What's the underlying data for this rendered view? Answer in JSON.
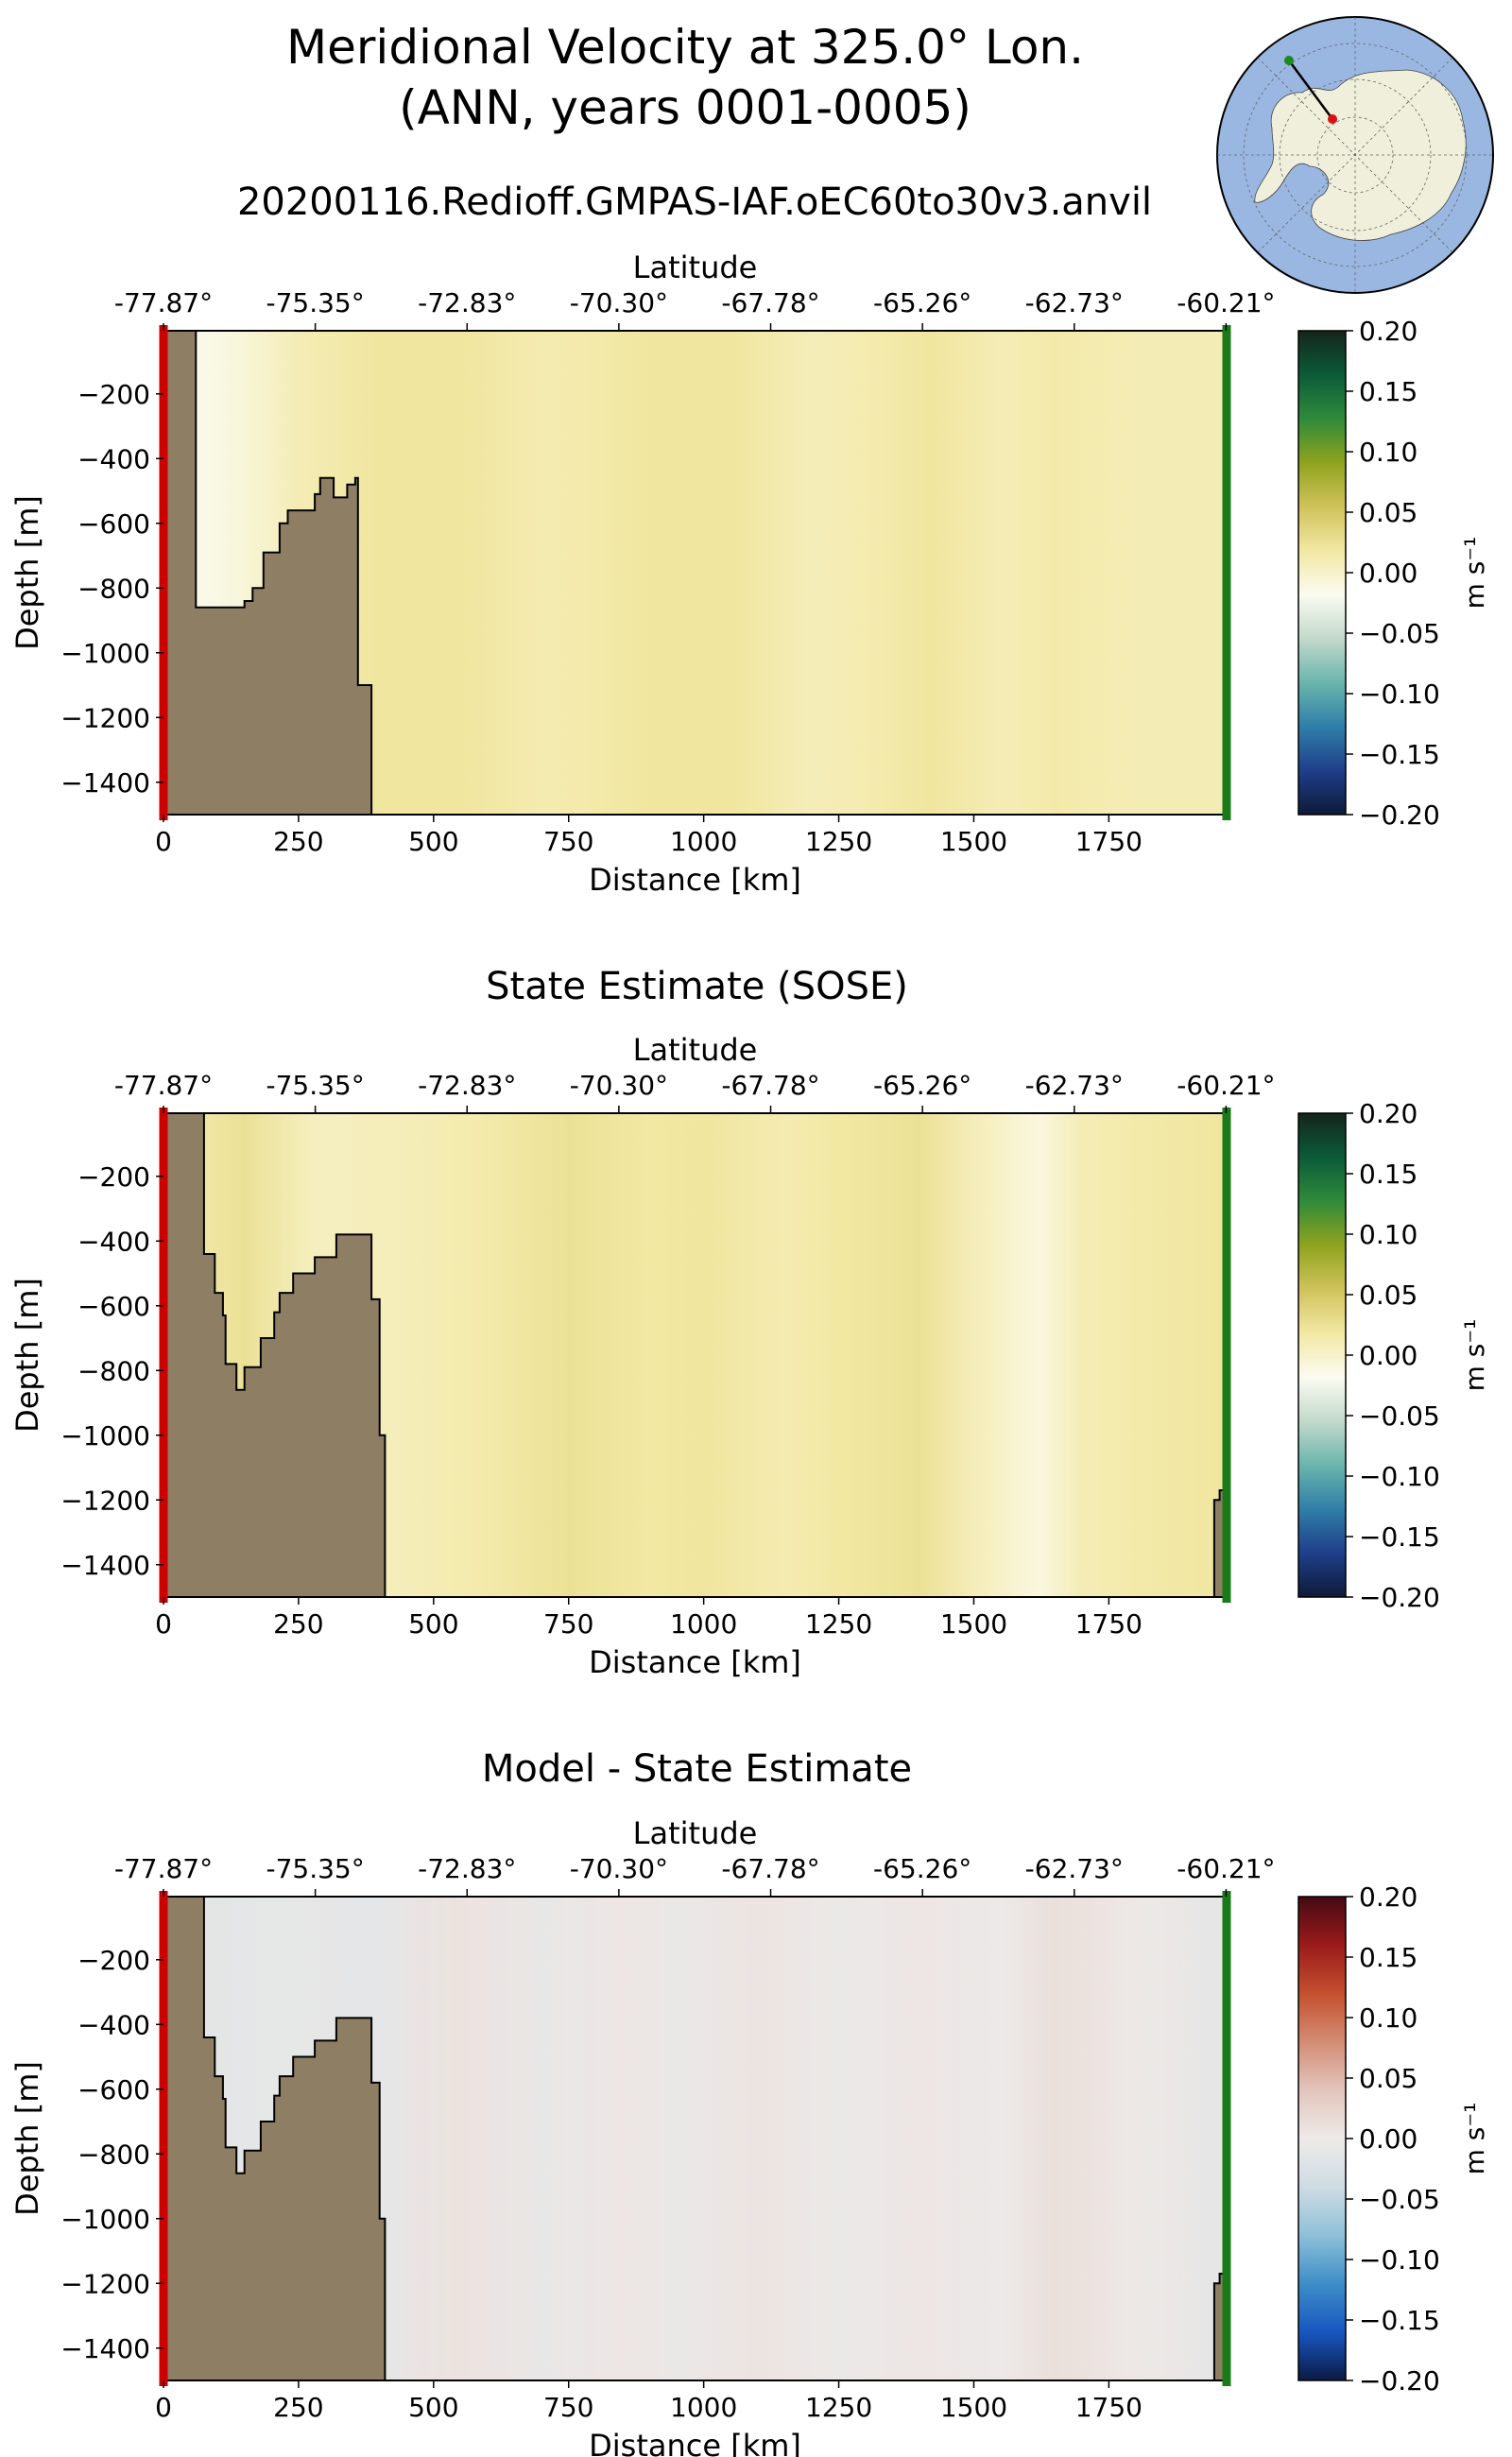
{
  "title": {
    "line1": "Meridional Velocity at 325.0° Lon.",
    "line2": "(ANN, years 0001-0005)",
    "run_name": "20200116.Redioff.GMPAS-IAF.oEC60to30v3.anvil"
  },
  "colors": {
    "bathymetry_fill": "#8e7e64",
    "start_marker": "#cc0000",
    "end_marker": "#1a7a1a",
    "velocity_cmap": [
      "#0e1a38",
      "#1f3f8a",
      "#2f7fa8",
      "#6ab5ad",
      "#c3d9cc",
      "#fbfbf1",
      "#f2e8a3",
      "#cfc25b",
      "#8fa31e",
      "#2f8b3a",
      "#0b5b39",
      "#14251c"
    ],
    "diff_cmap": [
      "#0b1a44",
      "#1857c0",
      "#3e8ec8",
      "#8ec0d8",
      "#cfdce3",
      "#eeeae8",
      "#e2c5bc",
      "#d38c74",
      "#c4502e",
      "#9b1b1b",
      "#450a14"
    ]
  },
  "chart_data": [
    {
      "type": "heatmap",
      "title": "",
      "xlabel": "Distance [km]",
      "ylabel": "Depth [m]",
      "top_xlabel": "Latitude",
      "xlim": [
        0,
        1968
      ],
      "ylim": [
        -1500,
        -5
      ],
      "x_ticks": [
        "0",
        "250",
        "500",
        "750",
        "1000",
        "1250",
        "1500",
        "1750"
      ],
      "x_tick_values": [
        0,
        250,
        500,
        750,
        1000,
        1250,
        1500,
        1750
      ],
      "y_ticks": [
        "−200",
        "−400",
        "−600",
        "−800",
        "−1000",
        "−1200",
        "−1400"
      ],
      "y_tick_values": [
        -200,
        -400,
        -600,
        -800,
        -1000,
        -1200,
        -1400
      ],
      "top_ticks": [
        "-77.87°",
        "-75.35°",
        "-72.83°",
        "-70.30°",
        "-67.78°",
        "-65.26°",
        "-62.73°",
        "-60.21°"
      ],
      "top_tick_km": [
        0,
        281,
        562,
        843,
        1124,
        1405,
        1686,
        1967
      ],
      "colorbar": {
        "label": "m s⁻¹",
        "min": -0.2,
        "max": 0.2,
        "ticks": [
          "0.20",
          "0.15",
          "0.10",
          "0.05",
          "0.00",
          "−0.05",
          "−0.10",
          "−0.15",
          "−0.20"
        ],
        "cmap": "velocity"
      },
      "velocity_columns": [
        {
          "x_km": 0,
          "v": -0.01
        },
        {
          "x_km": 60,
          "v": -0.015
        },
        {
          "x_km": 140,
          "v": -0.008
        },
        {
          "x_km": 250,
          "v": 0.01
        },
        {
          "x_km": 400,
          "v": 0.02
        },
        {
          "x_km": 550,
          "v": 0.02
        },
        {
          "x_km": 700,
          "v": 0.012
        },
        {
          "x_km": 800,
          "v": 0.015
        },
        {
          "x_km": 900,
          "v": 0.02
        },
        {
          "x_km": 1050,
          "v": 0.02
        },
        {
          "x_km": 1200,
          "v": 0.008
        },
        {
          "x_km": 1300,
          "v": 0.012
        },
        {
          "x_km": 1420,
          "v": 0.02
        },
        {
          "x_km": 1550,
          "v": 0.01
        },
        {
          "x_km": 1650,
          "v": 0.015
        },
        {
          "x_km": 1800,
          "v": 0.01
        },
        {
          "x_km": 1968,
          "v": 0.01
        }
      ],
      "bathymetry": [
        [
          0,
          -5
        ],
        [
          60,
          -5
        ],
        [
          60,
          -860
        ],
        [
          150,
          -860
        ],
        [
          150,
          -840
        ],
        [
          165,
          -840
        ],
        [
          165,
          -800
        ],
        [
          185,
          -800
        ],
        [
          185,
          -690
        ],
        [
          215,
          -690
        ],
        [
          215,
          -600
        ],
        [
          230,
          -600
        ],
        [
          230,
          -560
        ],
        [
          280,
          -560
        ],
        [
          280,
          -510
        ],
        [
          290,
          -510
        ],
        [
          290,
          -460
        ],
        [
          315,
          -460
        ],
        [
          315,
          -520
        ],
        [
          340,
          -520
        ],
        [
          340,
          -480
        ],
        [
          355,
          -480
        ],
        [
          355,
          -460
        ],
        [
          360,
          -460
        ],
        [
          360,
          -520
        ],
        [
          360,
          -1100
        ],
        [
          385,
          -1100
        ],
        [
          385,
          -1500
        ],
        [
          0,
          -1500
        ]
      ],
      "east_bathymetry": []
    },
    {
      "type": "heatmap",
      "title": "State Estimate (SOSE)",
      "xlabel": "Distance [km]",
      "ylabel": "Depth [m]",
      "top_xlabel": "Latitude",
      "xlim": [
        0,
        1968
      ],
      "ylim": [
        -1500,
        -5
      ],
      "x_ticks": [
        "0",
        "250",
        "500",
        "750",
        "1000",
        "1250",
        "1500",
        "1750"
      ],
      "x_tick_values": [
        0,
        250,
        500,
        750,
        1000,
        1250,
        1500,
        1750
      ],
      "y_ticks": [
        "−200",
        "−400",
        "−600",
        "−800",
        "−1000",
        "−1200",
        "−1400"
      ],
      "y_tick_values": [
        -200,
        -400,
        -600,
        -800,
        -1000,
        -1200,
        -1400
      ],
      "top_ticks": [
        "-77.87°",
        "-75.35°",
        "-72.83°",
        "-70.30°",
        "-67.78°",
        "-65.26°",
        "-62.73°",
        "-60.21°"
      ],
      "top_tick_km": [
        0,
        281,
        562,
        843,
        1124,
        1405,
        1686,
        1967
      ],
      "colorbar": {
        "label": "m s⁻¹",
        "min": -0.2,
        "max": 0.2,
        "ticks": [
          "0.20",
          "0.15",
          "0.10",
          "0.05",
          "0.00",
          "−0.05",
          "−0.10",
          "−0.15",
          "−0.20"
        ],
        "cmap": "velocity"
      },
      "velocity_columns": [
        {
          "x_km": 0,
          "v": 0.01
        },
        {
          "x_km": 150,
          "v": 0.025
        },
        {
          "x_km": 280,
          "v": 0.005
        },
        {
          "x_km": 450,
          "v": 0.008
        },
        {
          "x_km": 600,
          "v": 0.015
        },
        {
          "x_km": 750,
          "v": 0.025
        },
        {
          "x_km": 900,
          "v": 0.018
        },
        {
          "x_km": 1000,
          "v": 0.02
        },
        {
          "x_km": 1150,
          "v": 0.012
        },
        {
          "x_km": 1250,
          "v": 0.018
        },
        {
          "x_km": 1400,
          "v": 0.025
        },
        {
          "x_km": 1500,
          "v": 0.008
        },
        {
          "x_km": 1620,
          "v": -0.01
        },
        {
          "x_km": 1700,
          "v": 0.01
        },
        {
          "x_km": 1800,
          "v": 0.015
        },
        {
          "x_km": 1968,
          "v": 0.02
        }
      ],
      "bathymetry": [
        [
          0,
          -5
        ],
        [
          75,
          -5
        ],
        [
          75,
          -440
        ],
        [
          95,
          -440
        ],
        [
          95,
          -560
        ],
        [
          110,
          -560
        ],
        [
          110,
          -630
        ],
        [
          115,
          -630
        ],
        [
          115,
          -780
        ],
        [
          135,
          -780
        ],
        [
          135,
          -860
        ],
        [
          150,
          -860
        ],
        [
          150,
          -790
        ],
        [
          180,
          -790
        ],
        [
          180,
          -700
        ],
        [
          205,
          -700
        ],
        [
          205,
          -620
        ],
        [
          215,
          -620
        ],
        [
          215,
          -560
        ],
        [
          240,
          -560
        ],
        [
          240,
          -500
        ],
        [
          280,
          -500
        ],
        [
          280,
          -450
        ],
        [
          320,
          -450
        ],
        [
          320,
          -380
        ],
        [
          385,
          -380
        ],
        [
          385,
          -580
        ],
        [
          400,
          -580
        ],
        [
          400,
          -1000
        ],
        [
          410,
          -1000
        ],
        [
          410,
          -1500
        ],
        [
          0,
          -1500
        ]
      ],
      "east_bathymetry": [
        [
          1945,
          -1500
        ],
        [
          1945,
          -1200
        ],
        [
          1955,
          -1200
        ],
        [
          1955,
          -1170
        ],
        [
          1968,
          -1170
        ],
        [
          1968,
          -1500
        ]
      ]
    },
    {
      "type": "heatmap",
      "title": "Model - State Estimate",
      "xlabel": "Distance [km]",
      "ylabel": "Depth [m]",
      "top_xlabel": "Latitude",
      "xlim": [
        0,
        1968
      ],
      "ylim": [
        -1500,
        -5
      ],
      "x_ticks": [
        "0",
        "250",
        "500",
        "750",
        "1000",
        "1250",
        "1500",
        "1750"
      ],
      "x_tick_values": [
        0,
        250,
        500,
        750,
        1000,
        1250,
        1500,
        1750
      ],
      "y_ticks": [
        "−200",
        "−400",
        "−600",
        "−800",
        "−1000",
        "−1200",
        "−1400"
      ],
      "y_tick_values": [
        -200,
        -400,
        -600,
        -800,
        -1000,
        -1200,
        -1400
      ],
      "top_ticks": [
        "-77.87°",
        "-75.35°",
        "-72.83°",
        "-70.30°",
        "-67.78°",
        "-65.26°",
        "-62.73°",
        "-60.21°"
      ],
      "top_tick_km": [
        0,
        281,
        562,
        843,
        1124,
        1405,
        1686,
        1967
      ],
      "colorbar": {
        "label": "m s⁻¹",
        "min": -0.2,
        "max": 0.2,
        "ticks": [
          "0.20",
          "0.15",
          "0.10",
          "0.05",
          "0.00",
          "−0.05",
          "−0.10",
          "−0.15",
          "−0.20"
        ],
        "cmap": "diff"
      },
      "velocity_columns": [
        {
          "x_km": 0,
          "v": -0.015
        },
        {
          "x_km": 200,
          "v": -0.01
        },
        {
          "x_km": 400,
          "v": -0.012
        },
        {
          "x_km": 550,
          "v": 0.008
        },
        {
          "x_km": 700,
          "v": -0.008
        },
        {
          "x_km": 850,
          "v": 0.004
        },
        {
          "x_km": 950,
          "v": -0.005
        },
        {
          "x_km": 1100,
          "v": 0.006
        },
        {
          "x_km": 1250,
          "v": -0.004
        },
        {
          "x_km": 1400,
          "v": 0.004
        },
        {
          "x_km": 1550,
          "v": -0.002
        },
        {
          "x_km": 1650,
          "v": 0.012
        },
        {
          "x_km": 1800,
          "v": 0.002
        },
        {
          "x_km": 1968,
          "v": -0.012
        }
      ],
      "bathymetry": [
        [
          0,
          -5
        ],
        [
          75,
          -5
        ],
        [
          75,
          -440
        ],
        [
          95,
          -440
        ],
        [
          95,
          -560
        ],
        [
          110,
          -560
        ],
        [
          110,
          -630
        ],
        [
          115,
          -630
        ],
        [
          115,
          -780
        ],
        [
          135,
          -780
        ],
        [
          135,
          -860
        ],
        [
          150,
          -860
        ],
        [
          150,
          -790
        ],
        [
          180,
          -790
        ],
        [
          180,
          -700
        ],
        [
          205,
          -700
        ],
        [
          205,
          -620
        ],
        [
          215,
          -620
        ],
        [
          215,
          -560
        ],
        [
          240,
          -560
        ],
        [
          240,
          -500
        ],
        [
          280,
          -500
        ],
        [
          280,
          -450
        ],
        [
          320,
          -450
        ],
        [
          320,
          -380
        ],
        [
          385,
          -380
        ],
        [
          385,
          -580
        ],
        [
          400,
          -580
        ],
        [
          400,
          -1000
        ],
        [
          410,
          -1000
        ],
        [
          410,
          -1500
        ],
        [
          0,
          -1500
        ]
      ],
      "east_bathymetry": [
        [
          1945,
          -1500
        ],
        [
          1945,
          -1200
        ],
        [
          1955,
          -1200
        ],
        [
          1955,
          -1170
        ],
        [
          1968,
          -1170
        ],
        [
          1968,
          -1500
        ]
      ]
    }
  ]
}
